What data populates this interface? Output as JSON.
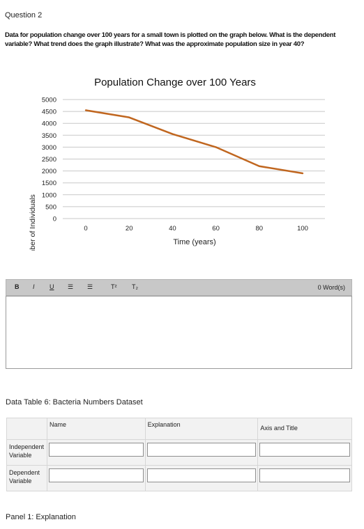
{
  "question": {
    "title": "Question 2",
    "text": "Data for population change over 100 years for a small town is plotted on the graph below. What is the dependent variable? What trend does the graph illustrate? What was the approximate population size in year 40?"
  },
  "chart_data": {
    "type": "line",
    "title": "Population Change over 100 Years",
    "xlabel": "Time (years)",
    "ylabel": "Number of Individuals",
    "x": [
      0,
      20,
      40,
      60,
      80,
      100
    ],
    "y": [
      4550,
      4250,
      3550,
      3000,
      2200,
      1900
    ],
    "x_ticks": [
      0,
      20,
      40,
      60,
      80,
      100
    ],
    "y_ticks": [
      0,
      500,
      1000,
      1500,
      2000,
      2500,
      3000,
      3500,
      4000,
      4500,
      5000
    ],
    "ylim": [
      0,
      5000
    ],
    "grid": "horizontal",
    "line_color": "#c0661f"
  },
  "toolbar": {
    "bold": "B",
    "italic": "I",
    "underline": "U",
    "bullet_list": "☰",
    "numbered_list": "☰",
    "superscript": "T²",
    "subscript": "T₂",
    "word_count": "0 Word(s)"
  },
  "data_table": {
    "title": "Data Table 6: Bacteria Numbers Dataset",
    "headers": [
      "",
      "Name",
      "Explanation",
      "Axis and Title"
    ],
    "rows": [
      {
        "label": "Independent Variable"
      },
      {
        "label": "Dependent Variable"
      }
    ]
  },
  "panel_label": "Panel 1: Explanation"
}
